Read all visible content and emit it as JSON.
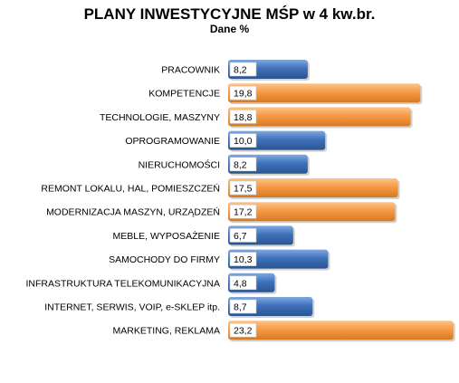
{
  "chart_data": {
    "type": "bar",
    "orientation": "horizontal",
    "title": "PLANY INWESTYCYJNE MŚP w 4 kw.br.",
    "subtitle": "Dane %",
    "categories": [
      "PRACOWNIK",
      "KOMPETENCJE",
      "TECHNOLOGIE, MASZYNY",
      "OPROGRAMOWANIE",
      "NIERUCHOMOŚCI",
      "REMONT LOKALU, HAL, POMIESZCZEŃ",
      "MODERNIZACJA MASZYN, URZĄDZEŃ",
      "MEBLE, WYPOSAŻENIE",
      "SAMOCHODY DO FIRMY",
      "INFRASTRUKTURA TELEKOMUNIKACYJNA",
      "INTERNET, SERWIS, VOIP, e-SKLEP itp.",
      "MARKETING, REKLAMA"
    ],
    "values": [
      8.2,
      19.8,
      18.8,
      10.0,
      8.2,
      17.5,
      17.2,
      6.7,
      10.3,
      4.8,
      8.7,
      23.2
    ],
    "value_labels": [
      "8,2",
      "19,8",
      "18,8",
      "10,0",
      "8,2",
      "17,5",
      "17,2",
      "6,7",
      "10,3",
      "4,8",
      "8,7",
      "23,2"
    ],
    "bar_colors": [
      "blue",
      "orange",
      "orange",
      "blue",
      "blue",
      "orange",
      "orange",
      "blue",
      "blue",
      "blue",
      "blue",
      "orange"
    ],
    "xlim": [
      0,
      23.2
    ],
    "grid": false,
    "legend": "none",
    "colors": {
      "blue": "#3f72bb",
      "blue_light": "#7fa8df",
      "blue_dark": "#2a548f",
      "orange": "#f59a44",
      "orange_light": "#fcc48a",
      "orange_dark": "#d67a22"
    }
  }
}
